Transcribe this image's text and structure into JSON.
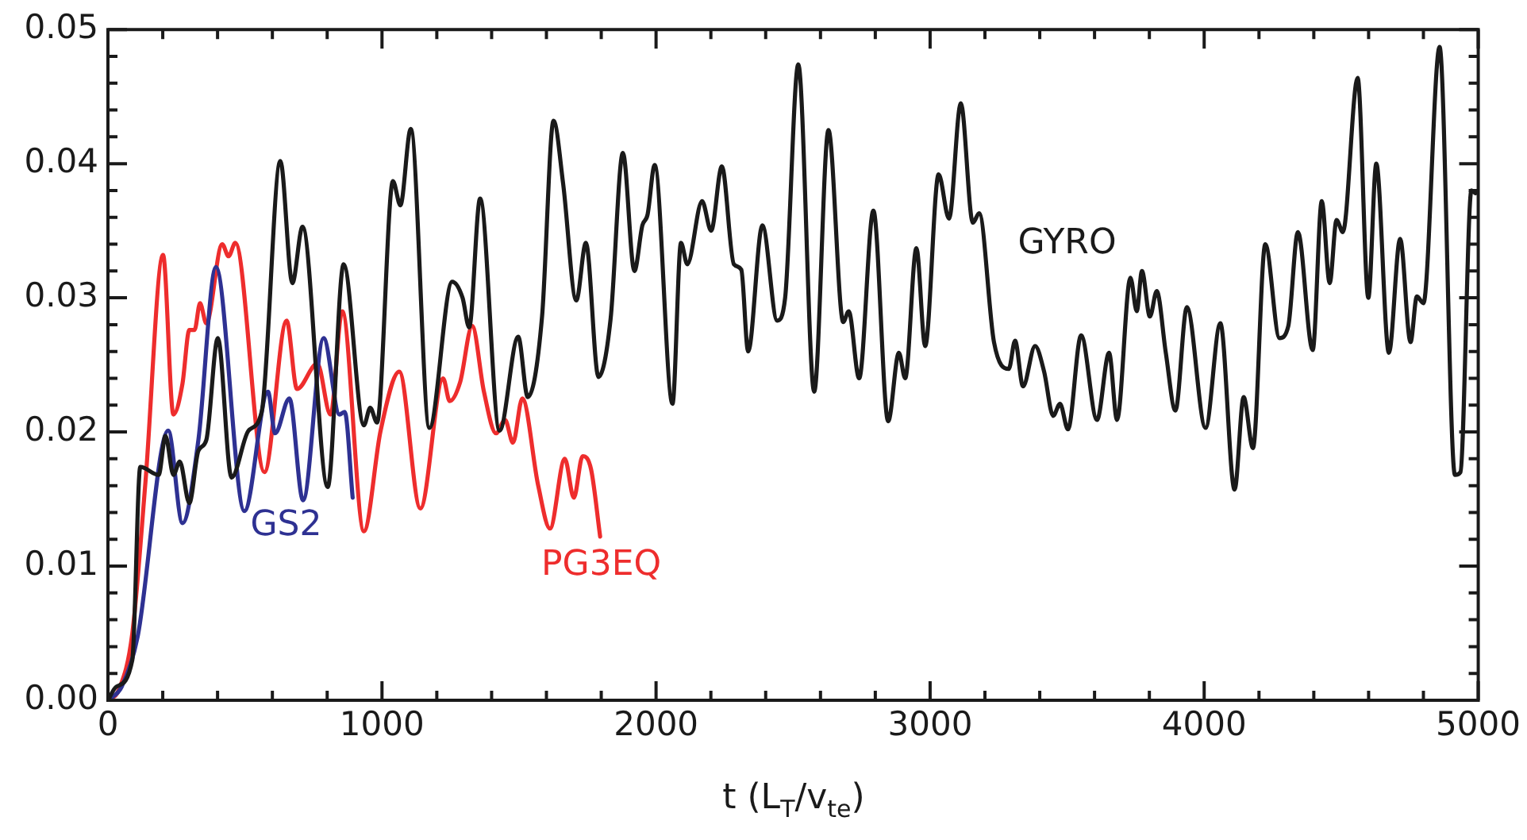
{
  "chart_data": {
    "type": "line",
    "xlabel": "t  (L$_{T}$/v$_{te}$)",
    "marker": "none",
    "line_style": "solid",
    "grid": false,
    "legend": false,
    "xlim": [
      0,
      5000
    ],
    "xticks": [
      0,
      {
        "value": 200,
        "label": null
      },
      {
        "value": 400,
        "label": null
      },
      {
        "value": 600,
        "label": null
      },
      {
        "value": 800,
        "label": null
      },
      1000,
      {
        "value": 1200,
        "label": null
      },
      {
        "value": 1400,
        "label": null
      },
      {
        "value": 1600,
        "label": null
      },
      {
        "value": 1800,
        "label": null
      },
      2000,
      {
        "value": 2200,
        "label": null
      },
      {
        "value": 2400,
        "label": null
      },
      {
        "value": 2600,
        "label": null
      },
      {
        "value": 2800,
        "label": null
      },
      3000,
      {
        "value": 3200,
        "label": null
      },
      {
        "value": 3400,
        "label": null
      },
      {
        "value": 3600,
        "label": null
      },
      {
        "value": 3800,
        "label": null
      },
      4000,
      {
        "value": 4200,
        "label": null
      },
      {
        "value": 4400,
        "label": null
      },
      {
        "value": 4600,
        "label": null
      },
      {
        "value": 4800,
        "label": null
      },
      5000
    ],
    "ylim": [
      0,
      0.05
    ],
    "yticks": [
      {
        "value": 0,
        "label": "0.00"
      },
      {
        "value": 0.002,
        "label": null
      },
      {
        "value": 0.004,
        "label": null
      },
      {
        "value": 0.006,
        "label": null
      },
      {
        "value": 0.008,
        "label": null
      },
      {
        "value": 0.01,
        "label": "0.01"
      },
      {
        "value": 0.012,
        "label": null
      },
      {
        "value": 0.014,
        "label": null
      },
      {
        "value": 0.016,
        "label": null
      },
      {
        "value": 0.018,
        "label": null
      },
      {
        "value": 0.02,
        "label": "0.02"
      },
      {
        "value": 0.022,
        "label": null
      },
      {
        "value": 0.024,
        "label": null
      },
      {
        "value": 0.026,
        "label": null
      },
      {
        "value": 0.028,
        "label": null
      },
      {
        "value": 0.03,
        "label": "0.03"
      },
      {
        "value": 0.032,
        "label": null
      },
      {
        "value": 0.034,
        "label": null
      },
      {
        "value": 0.036,
        "label": null
      },
      {
        "value": 0.038,
        "label": null
      },
      {
        "value": 0.04,
        "label": "0.04"
      },
      {
        "value": 0.042,
        "label": null
      },
      {
        "value": 0.044,
        "label": null
      },
      {
        "value": 0.046,
        "label": null
      },
      {
        "value": 0.048,
        "label": null
      },
      {
        "value": 0.05,
        "label": "0.05"
      }
    ],
    "series": [
      {
        "name": "GYRO",
        "color": "#1a1a1a",
        "x": [
          0,
          30,
          89,
          118,
          185,
          210,
          239,
          262,
          297,
          330,
          359,
          401,
          451,
          513,
          561,
          629,
          673,
          710,
          802,
          860,
          934,
          957,
          982,
          1040,
          1067,
          1105,
          1173,
          1256,
          1294,
          1318,
          1358,
          1429,
          1497,
          1532,
          1584,
          1626,
          1661,
          1709,
          1744,
          1790,
          1834,
          1879,
          1921,
          1950,
          1969,
          1995,
          2060,
          2091,
          2114,
          2168,
          2201,
          2240,
          2284,
          2311,
          2336,
          2388,
          2442,
          2471,
          2519,
          2577,
          2629,
          2683,
          2703,
          2741,
          2793,
          2847,
          2886,
          2909,
          2950,
          2982,
          3031,
          3069,
          3112,
          3156,
          3179,
          3233,
          3287,
          3310,
          3339,
          3383,
          3416,
          3449,
          3474,
          3503,
          3551,
          3609,
          3653,
          3682,
          3731,
          3754,
          3773,
          3802,
          3827,
          3860,
          3895,
          3937,
          4005,
          4059,
          4111,
          4144,
          4178,
          4223,
          4275,
          4307,
          4342,
          4396,
          4429,
          4458,
          4483,
          4506,
          4560,
          4599,
          4628,
          4674,
          4715,
          4753,
          4776,
          4800,
          4859,
          4915,
          4935,
          4975,
          4990
        ],
        "values": [
          0,
          0.001,
          0.003,
          0.0174,
          0.0168,
          0.0197,
          0.0168,
          0.0178,
          0.0147,
          0.0186,
          0.0194,
          0.027,
          0.0166,
          0.0201,
          0.0215,
          0.0402,
          0.0311,
          0.0353,
          0.0159,
          0.0325,
          0.0205,
          0.0218,
          0.0207,
          0.0387,
          0.0369,
          0.0426,
          0.0203,
          0.0312,
          0.03,
          0.0278,
          0.0374,
          0.0201,
          0.0271,
          0.0226,
          0.0286,
          0.0432,
          0.0385,
          0.0298,
          0.0341,
          0.0241,
          0.0284,
          0.0408,
          0.032,
          0.0354,
          0.0362,
          0.0399,
          0.0221,
          0.0341,
          0.0325,
          0.0372,
          0.035,
          0.0398,
          0.0325,
          0.0321,
          0.026,
          0.0354,
          0.0283,
          0.03,
          0.0474,
          0.023,
          0.0425,
          0.0282,
          0.029,
          0.024,
          0.0365,
          0.0208,
          0.0259,
          0.024,
          0.0337,
          0.0264,
          0.0392,
          0.0359,
          0.0445,
          0.0356,
          0.0363,
          0.0267,
          0.0247,
          0.0268,
          0.0234,
          0.0264,
          0.0245,
          0.0212,
          0.0221,
          0.0202,
          0.0272,
          0.0209,
          0.0259,
          0.0209,
          0.0315,
          0.029,
          0.032,
          0.0286,
          0.0305,
          0.0259,
          0.0216,
          0.0293,
          0.0203,
          0.0281,
          0.0157,
          0.0226,
          0.0188,
          0.034,
          0.027,
          0.0279,
          0.0349,
          0.0261,
          0.0372,
          0.0311,
          0.0358,
          0.0349,
          0.0464,
          0.03,
          0.04,
          0.0259,
          0.0344,
          0.0267,
          0.0301,
          0.0296,
          0.0487,
          0.0168,
          0.017,
          0.038,
          0.0378
        ]
      },
      {
        "name": "GS2",
        "color": "#2e3192",
        "x": [
          0,
          50,
          108,
          220,
          272,
          330,
          394,
          498,
          584,
          610,
          662,
          712,
          787,
          845,
          864,
          893
        ],
        "values": [
          0,
          0.001,
          0.0047,
          0.0201,
          0.0132,
          0.0194,
          0.0323,
          0.0141,
          0.023,
          0.0199,
          0.0225,
          0.0149,
          0.027,
          0.0213,
          0.0215,
          0.0151
        ]
      },
      {
        "name": "PG3EQ",
        "color": "#ee2d2d",
        "x": [
          0,
          40,
          89,
          137,
          201,
          239,
          272,
          297,
          316,
          336,
          359,
          417,
          440,
          465,
          571,
          652,
          690,
          764,
          812,
          855,
          934,
          995,
          1063,
          1140,
          1223,
          1247,
          1285,
          1329,
          1372,
          1416,
          1449,
          1478,
          1512,
          1570,
          1613,
          1667,
          1700,
          1732,
          1763,
          1796
        ],
        "values": [
          0,
          0.0008,
          0.005,
          0.0163,
          0.0332,
          0.0213,
          0.0236,
          0.0276,
          0.0276,
          0.0296,
          0.0281,
          0.034,
          0.0331,
          0.0341,
          0.017,
          0.0283,
          0.0232,
          0.0251,
          0.0213,
          0.029,
          0.0126,
          0.0201,
          0.0245,
          0.0143,
          0.024,
          0.0223,
          0.0237,
          0.0279,
          0.023,
          0.0199,
          0.0209,
          0.0192,
          0.0225,
          0.016,
          0.0128,
          0.018,
          0.0151,
          0.0182,
          0.0172,
          0.0122
        ]
      }
    ]
  }
}
